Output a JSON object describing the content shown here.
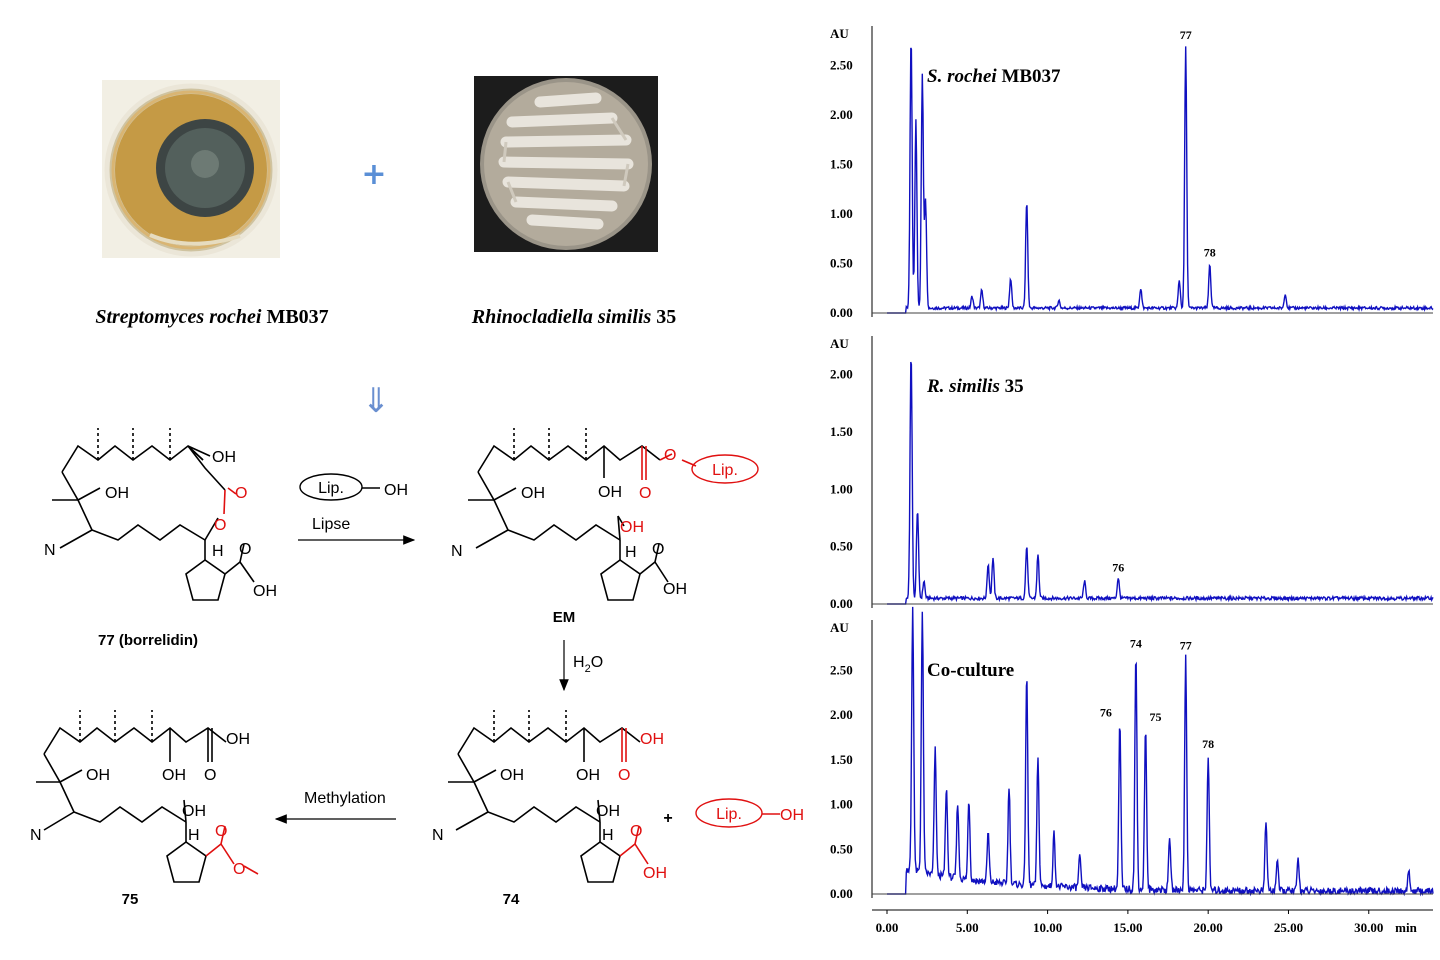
{
  "organisms": {
    "left_caption_italic": "Streptomyces rochei",
    "left_caption_strain": "MB037",
    "right_caption_italic": "Rhinocladiella similis",
    "right_caption_strain": "35",
    "plus_symbol": "+",
    "down_arrow": "⇓"
  },
  "scheme": {
    "reagent_lip": "Lip.",
    "reagent_oh": "OH",
    "arrow1_label": "Lipse",
    "arrow2_label_h": "H",
    "arrow2_label_sub": "2",
    "arrow2_label_o": "O",
    "arrow3_label": "Methylation",
    "plus": "+",
    "compound_77": "77 (borrelidin)",
    "compound_em": "EM",
    "compound_74": "74",
    "compound_75": "75",
    "atom_oh": "OH",
    "atom_o": "O",
    "atom_h": "H",
    "atom_n": "N"
  },
  "chromatograms": {
    "x_axis": {
      "ticks": [
        "0.00",
        "5.00",
        "10.00",
        "15.00",
        "20.00",
        "25.00",
        "30.00"
      ],
      "unit": "min",
      "range": [
        0,
        34
      ]
    },
    "colors": {
      "trace": "#1010c0",
      "baseline": "#404040"
    },
    "panels": [
      {
        "title_italic": "S. rochei",
        "title_rest": " MB037",
        "yunit": "AU",
        "yticks": [
          "0.00",
          "0.50",
          "1.00",
          "1.50",
          "2.00",
          "2.50"
        ],
        "ymax": 2.8,
        "peak_labels": [
          "77",
          "78"
        ],
        "peaks": [
          [
            1.5,
            2.75
          ],
          [
            1.8,
            1.9
          ],
          [
            2.2,
            2.35
          ],
          [
            2.4,
            1.1
          ],
          [
            5.3,
            0.12
          ],
          [
            5.9,
            0.18
          ],
          [
            7.7,
            0.3
          ],
          [
            8.7,
            1.08
          ],
          [
            10.7,
            0.08
          ],
          [
            15.8,
            0.2
          ],
          [
            18.2,
            0.28
          ],
          [
            18.6,
            2.65
          ],
          [
            20.1,
            0.45
          ],
          [
            24.8,
            0.15
          ]
        ],
        "peak_label_times": [
          18.6,
          20.1
        ]
      },
      {
        "title_italic": "R. similis",
        "title_rest": " 35",
        "yunit": "AU",
        "yticks": [
          "0.00",
          "0.50",
          "1.00",
          "1.50",
          "2.00"
        ],
        "ymax": 2.25,
        "peak_labels": [
          "76"
        ],
        "peaks": [
          [
            1.5,
            2.15
          ],
          [
            1.9,
            0.78
          ],
          [
            2.3,
            0.15
          ],
          [
            6.3,
            0.3
          ],
          [
            6.6,
            0.35
          ],
          [
            8.7,
            0.45
          ],
          [
            9.4,
            0.38
          ],
          [
            12.3,
            0.15
          ],
          [
            14.4,
            0.18
          ]
        ],
        "peak_label_times": [
          14.4
        ]
      },
      {
        "title_italic": "",
        "title_rest": "Co-culture",
        "yunit": "AU",
        "yticks": [
          "0.00",
          "0.50",
          "1.00",
          "1.50",
          "2.00",
          "2.50"
        ],
        "ymax": 2.95,
        "peak_labels": [
          "76",
          "74",
          "75",
          "77",
          "78"
        ],
        "peaks": [
          [
            1.6,
            2.95
          ],
          [
            2.2,
            2.9
          ],
          [
            3.0,
            1.4
          ],
          [
            3.7,
            1.0
          ],
          [
            4.4,
            0.85
          ],
          [
            5.1,
            0.9
          ],
          [
            6.3,
            0.55
          ],
          [
            7.6,
            1.1
          ],
          [
            8.7,
            2.35
          ],
          [
            9.4,
            1.45
          ],
          [
            10.4,
            0.6
          ],
          [
            12.0,
            0.35
          ],
          [
            14.5,
            1.85
          ],
          [
            15.5,
            2.62
          ],
          [
            16.1,
            1.8
          ],
          [
            17.6,
            0.6
          ],
          [
            18.6,
            2.6
          ],
          [
            20.0,
            1.5
          ],
          [
            23.6,
            0.78
          ],
          [
            24.3,
            0.35
          ],
          [
            25.6,
            0.35
          ],
          [
            32.5,
            0.22
          ]
        ],
        "peak_label_times": [
          14.5,
          15.5,
          16.1,
          18.6,
          20.0
        ]
      }
    ]
  }
}
